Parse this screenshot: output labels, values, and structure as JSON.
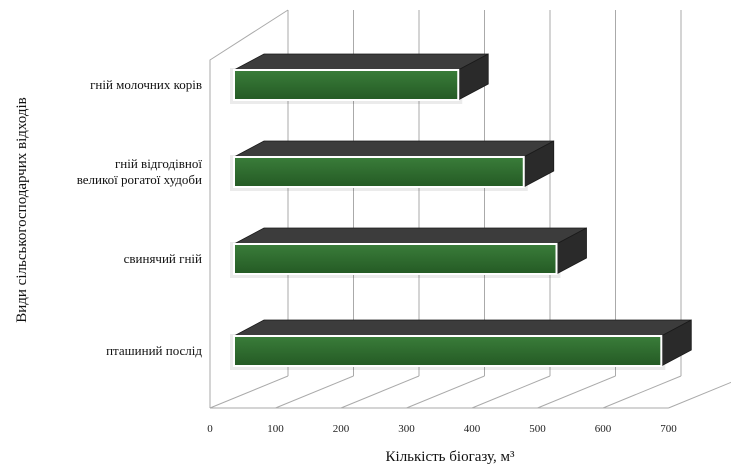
{
  "chart_data": {
    "type": "bar",
    "orientation": "horizontal",
    "three_d": true,
    "categories": [
      "гній молочних корів",
      "гній відгодівної\nвеликої рогатої худоби",
      "свинячий гній",
      "пташиний послід"
    ],
    "values": [
      350,
      450,
      500,
      660
    ],
    "xlabel": "Кількість біогазу, м³",
    "ylabel": "Види сільськогосподарчих відходів",
    "xlim": [
      0,
      700
    ],
    "xticks": [
      "0",
      "100",
      "200",
      "300",
      "400",
      "500",
      "600",
      "700"
    ],
    "grid": true,
    "colors": {
      "bar_front": "#2e6b2e",
      "bar_top": "#3c3c3c",
      "bar_side": "#2a2a2a",
      "grid": "#aaaaaa"
    }
  }
}
